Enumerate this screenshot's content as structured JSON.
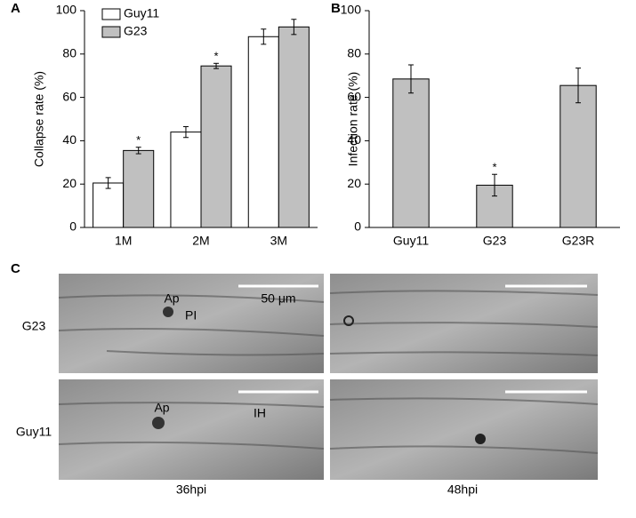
{
  "chart_data": [
    {
      "type": "grouped-bar",
      "panel": "A",
      "y_label": "Collapse rate (%)",
      "categories": [
        "1M",
        "2M",
        "3M"
      ],
      "series": [
        {
          "name": "Guy11",
          "color": "#ffffff",
          "values": [
            20.5,
            44,
            88
          ],
          "errors": [
            2.5,
            2.5,
            3.5
          ]
        },
        {
          "name": "G23",
          "color": "#c0c0c0",
          "values": [
            35.5,
            74.5,
            92.5
          ],
          "errors": [
            1.5,
            1.2,
            3.5
          ],
          "significance": [
            "*",
            "*",
            null
          ]
        }
      ],
      "ylim": [
        0,
        100
      ],
      "yticks": [
        0,
        20,
        40,
        60,
        80,
        100
      ],
      "legend": "top-left"
    },
    {
      "type": "bar",
      "panel": "B",
      "y_label": "Infection rate (%)",
      "categories": [
        "Guy11",
        "G23",
        "G23R"
      ],
      "values": [
        68.5,
        19.5,
        65.5
      ],
      "errors": [
        6.5,
        5,
        8
      ],
      "significance": [
        null,
        "*",
        null
      ],
      "color": "#c0c0c0",
      "ylim": [
        0,
        100
      ],
      "yticks": [
        0,
        20,
        40,
        60,
        80,
        100
      ]
    }
  ],
  "panel_c": {
    "panel": "C",
    "rows": [
      "G23",
      "Guy11"
    ],
    "columns": [
      "36hpi",
      "48hpi"
    ],
    "scale_bar": "50 μm",
    "annotations": {
      "g23_36": [
        "Ap",
        "PI"
      ],
      "guy11_36": [
        "Ap",
        "IH"
      ]
    }
  }
}
